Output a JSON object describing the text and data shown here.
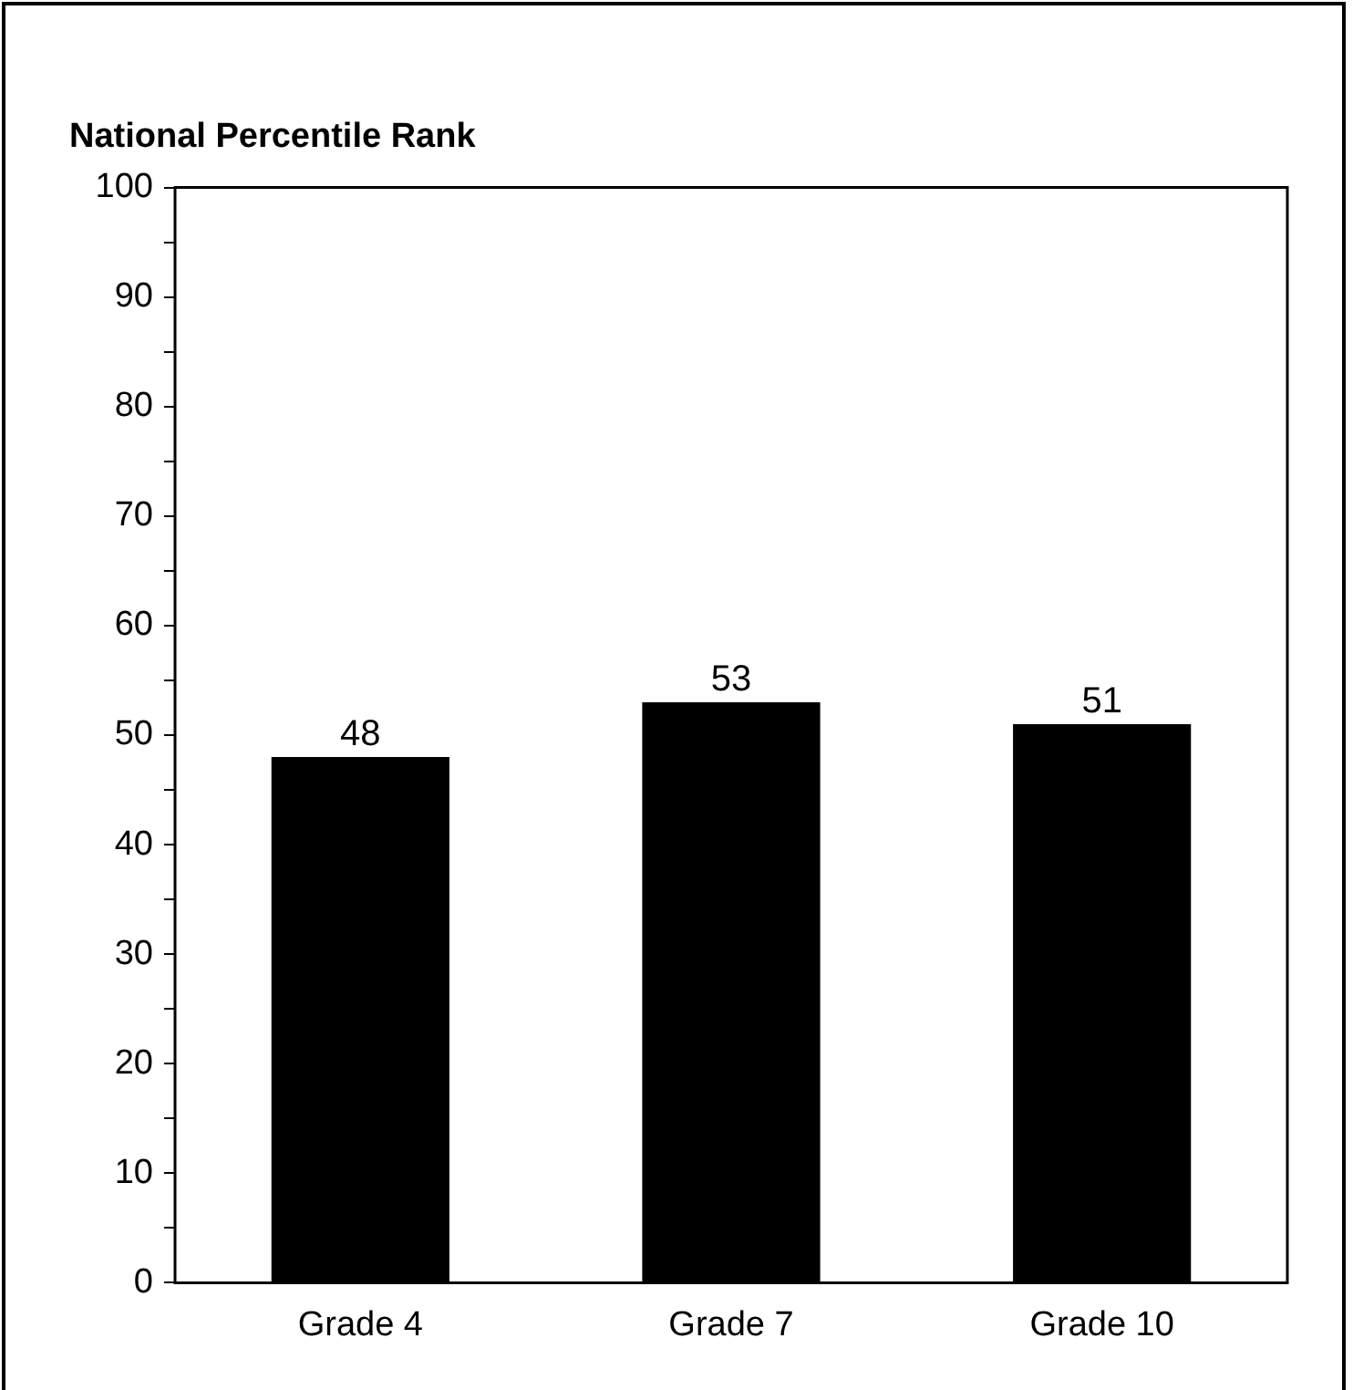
{
  "chart_data": {
    "type": "bar",
    "title": "National Percentile Rank",
    "categories": [
      "Grade 4",
      "Grade 7",
      "Grade 10"
    ],
    "values": [
      48,
      53,
      51
    ],
    "color": "#000000",
    "ylim": [
      0,
      100
    ],
    "yticks": [
      0,
      {
        "value": 5,
        "label": null
      },
      10,
      {
        "value": 15,
        "label": null
      },
      20,
      {
        "value": 25,
        "label": null
      },
      30,
      {
        "value": 35,
        "label": null
      },
      40,
      {
        "value": 45,
        "label": null
      },
      50,
      {
        "value": 55,
        "label": null
      },
      60,
      {
        "value": 65,
        "label": null
      },
      70,
      {
        "value": 75,
        "label": null
      },
      80,
      {
        "value": 85,
        "label": null
      },
      90,
      {
        "value": 95,
        "label": null
      },
      100
    ],
    "data_labels": true,
    "grid": false,
    "legend": false
  }
}
